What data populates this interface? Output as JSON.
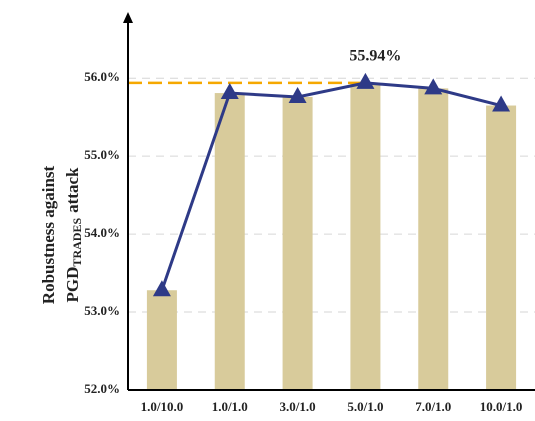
{
  "chart_data": {
    "type": "bar",
    "categories": [
      "1.0/10.0",
      "1.0/1.0",
      "3.0/1.0",
      "5.0/1.0",
      "7.0/1.0",
      "10.0/1.0"
    ],
    "values": [
      53.28,
      55.81,
      55.76,
      55.94,
      55.87,
      55.65
    ],
    "color": "#d8cb9b",
    "line_color": "#2e3a87",
    "ylim": [
      52,
      56.85
    ],
    "yticks": [
      {
        "value": 52,
        "label": "52.0%"
      },
      {
        "value": 53,
        "label": "53.0%"
      },
      {
        "value": 54,
        "label": "54.0%"
      },
      {
        "value": 55,
        "label": "55.0%"
      },
      {
        "value": 56,
        "label": "56.0%"
      }
    ],
    "grid": true,
    "ylabel": {
      "line1": "Robustness against",
      "line2": "PGD",
      "subscript": "TRADES",
      "line2_end": "attack"
    },
    "annotation": {
      "text": "55.94%",
      "value": 55.94,
      "color": "#f5a800"
    }
  }
}
